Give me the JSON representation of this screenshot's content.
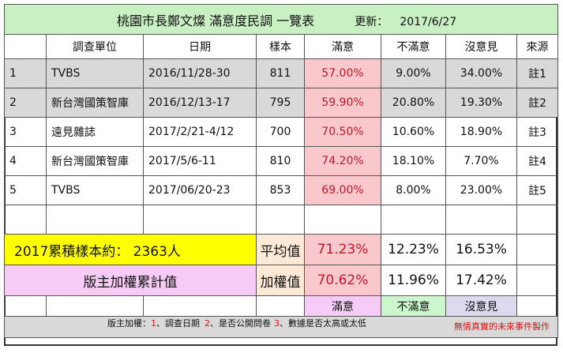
{
  "title": {
    "main": "桃園市長鄭文燦 滿意度民調 一覽表",
    "updated_label": "更新：",
    "updated_date": "2017/6/27"
  },
  "headers": [
    "",
    "調查單位",
    "日期",
    "樣本",
    "滿意",
    "不滿意",
    "沒意見",
    "來源"
  ],
  "rows": [
    {
      "no": "1",
      "org": "TVBS",
      "date": "2016/11/28-30",
      "sample": "811",
      "sat": "57.00%",
      "dissat": "9.00%",
      "none": "34.00%",
      "src": "註1"
    },
    {
      "no": "2",
      "org": "新台灣國策智庫",
      "date": "2016/12/13-17",
      "sample": "795",
      "sat": "59.90%",
      "dissat": "20.80%",
      "none": "19.30%",
      "src": "註2"
    },
    {
      "no": "3",
      "org": "遠見雜誌",
      "date": "2017/2/21-4/12",
      "sample": "700",
      "sat": "70.50%",
      "dissat": "10.60%",
      "none": "18.90%",
      "src": "註3"
    },
    {
      "no": "4",
      "org": "新台灣國策智庫",
      "date": "2017/5/6-11",
      "sample": "810",
      "sat": "74.20%",
      "dissat": "18.10%",
      "none": "7.70%",
      "src": "註4"
    },
    {
      "no": "5",
      "org": "TVBS",
      "date": "2017/06/20-23",
      "sample": "853",
      "sat": "69.00%",
      "dissat": "8.00%",
      "none": "23.00%",
      "src": "註5"
    }
  ],
  "summary": {
    "total_label": "2017累積樣本約：  2363人",
    "avg_label": "平均值",
    "avg_sat": "71.23%",
    "avg_dissat": "12.23%",
    "avg_none": "16.53%",
    "weighted_title": "版主加權累計值",
    "weighted_label": "加權值",
    "w_sat": "70.62%",
    "w_dissat": "11.96%",
    "w_none": "17.42%"
  },
  "legend": {
    "sat": "滿意",
    "dissat": "不滿意",
    "none": "沒意見"
  },
  "footer": {
    "prefix": "版主加權：",
    "n1": "1",
    "t1": "、調查日期",
    "n2": "2",
    "t2": "、是否公開問卷",
    "n3": "3",
    "t3": "、數據是否太高或太低",
    "credit": "無情真實的未來事件製作"
  },
  "colors": {
    "title_bg": "#c9f0c2",
    "sat_bg": "#f8c8cc",
    "highlight_yellow": "#ffff00",
    "weighted_bg": "#f6ccf6"
  }
}
